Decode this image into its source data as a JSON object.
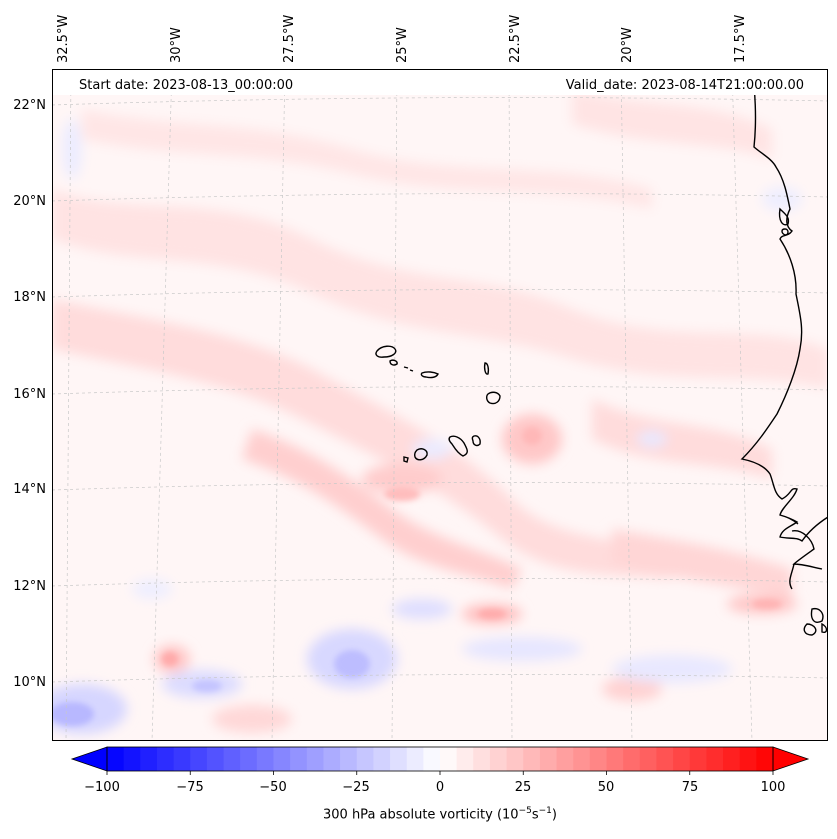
{
  "map": {
    "start_date": "Start date: 2023-08-13_00:00:00",
    "valid_date": "Valid_date: 2023-08-14T21:00:00.00",
    "field": "300 hPa absolute vorticity",
    "units_text": "(10",
    "units_exp1": "−5",
    "units_s": "s",
    "units_exp2": "−1",
    "units_close": ")",
    "lon_labels": [
      "32.5°W",
      "30°W",
      "27.5°W",
      "25°W",
      "22.5°W",
      "20°W",
      "17.5°W"
    ],
    "lat_labels": [
      "22°N",
      "20°N",
      "18°N",
      "16°N",
      "14°N",
      "12°N",
      "10°N"
    ],
    "colorbar": {
      "ticks": [
        "−100",
        "−75",
        "−50",
        "−25",
        "0",
        "25",
        "50",
        "75",
        "100"
      ],
      "min": -100,
      "max": 100,
      "extend": "both",
      "colormap": "bwr",
      "low_color": "#0000ff",
      "mid_color": "#ffffff",
      "high_color": "#ff0000"
    },
    "features": [
      "coastline-west-africa",
      "cape-verde-islands"
    ]
  }
}
